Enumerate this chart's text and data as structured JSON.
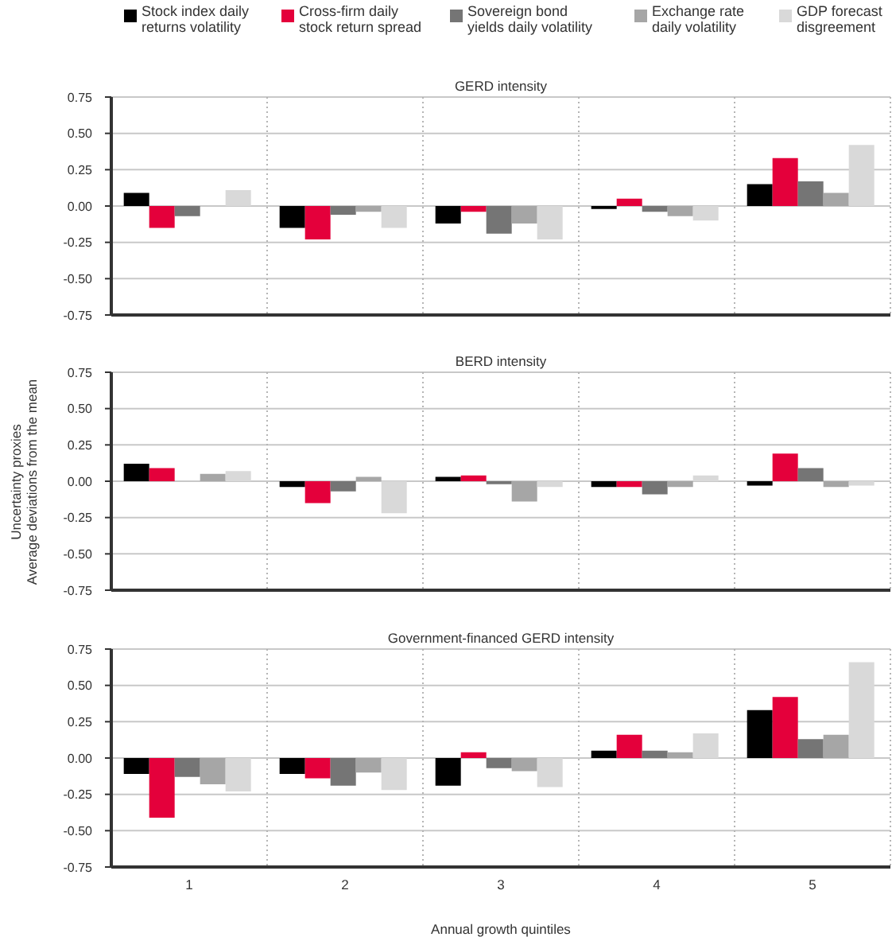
{
  "chart_data": [
    {
      "type": "bar",
      "title": "GERD intensity",
      "categories": [
        "1",
        "2",
        "3",
        "4",
        "5"
      ],
      "legend": "top",
      "grid": true,
      "tick_labels": "y",
      "ylim": [
        -0.75,
        0.75
      ],
      "yticks": [
        -0.75,
        {
          "value": -0.5,
          "label": "-0.50"
        },
        -0.25,
        {
          "value": 0,
          "label": "0.00"
        },
        0.25,
        {
          "value": 0.5,
          "label": "0.50"
        },
        0.75
      ],
      "series": [
        {
          "name": "Stock index daily returns volatility",
          "color": "#000000",
          "values": [
            0.09,
            -0.15,
            -0.12,
            -0.02,
            0.15
          ]
        },
        {
          "name": "Cross-firm daily stock return spread",
          "color": "#e4003b",
          "values": [
            -0.15,
            -0.23,
            -0.04,
            0.05,
            0.33
          ]
        },
        {
          "name": "Sovereign bond yields daily volatility",
          "color": "#757575",
          "values": [
            -0.07,
            -0.06,
            -0.19,
            -0.04,
            0.17
          ]
        },
        {
          "name": "Exchange rate daily volatility",
          "color": "#a6a6a6",
          "values": [
            0,
            -0.04,
            -0.12,
            -0.07,
            0.09
          ]
        },
        {
          "name": "GDP forecast disgreement",
          "color": "#d9d9d9",
          "values": [
            0.11,
            -0.15,
            -0.23,
            -0.1,
            0.42
          ]
        }
      ]
    },
    {
      "type": "bar",
      "title": "BERD intensity",
      "categories": [
        "1",
        "2",
        "3",
        "4",
        "5"
      ],
      "grid": true,
      "tick_labels": "y",
      "ylabel": "Uncertainty proxies\nAverage deviations from the mean",
      "ylim": [
        -0.75,
        0.75
      ],
      "yticks": [
        -0.75,
        {
          "value": -0.5,
          "label": "-0.50"
        },
        -0.25,
        {
          "value": 0,
          "label": "0.00"
        },
        0.25,
        {
          "value": 0.5,
          "label": "0.50"
        },
        0.75
      ],
      "series": [
        {
          "color": "#000000",
          "values": [
            0.12,
            -0.04,
            0.03,
            -0.04,
            -0.03
          ]
        },
        {
          "color": "#e4003b",
          "values": [
            0.09,
            -0.15,
            0.04,
            -0.04,
            0.19
          ]
        },
        {
          "color": "#757575",
          "values": [
            0,
            -0.07,
            -0.02,
            -0.09,
            0.09
          ]
        },
        {
          "color": "#a6a6a6",
          "values": [
            0.05,
            0.03,
            -0.14,
            -0.04,
            -0.04
          ]
        },
        {
          "color": "#d9d9d9",
          "values": [
            0.07,
            -0.22,
            -0.04,
            0.04,
            -0.03
          ]
        }
      ]
    },
    {
      "type": "bar",
      "title": "Government-financed GERD intensity",
      "categories": [
        "1",
        "2",
        "3",
        "4",
        "5"
      ],
      "grid": true,
      "xlabel": "Annual growth quintiles",
      "ylim": [
        -0.75,
        0.75
      ],
      "yticks": [
        -0.75,
        {
          "value": -0.5,
          "label": "-0.50"
        },
        -0.25,
        {
          "value": 0,
          "label": "0.00"
        },
        0.25,
        {
          "value": 0.5,
          "label": "0.50"
        },
        0.75
      ],
      "series": [
        {
          "color": "#000000",
          "values": [
            -0.11,
            -0.11,
            -0.19,
            0.05,
            0.33
          ]
        },
        {
          "color": "#e4003b",
          "values": [
            -0.41,
            -0.14,
            0.04,
            0.16,
            0.42
          ]
        },
        {
          "color": "#757575",
          "values": [
            -0.13,
            -0.19,
            -0.07,
            0.05,
            0.13
          ]
        },
        {
          "color": "#a6a6a6",
          "values": [
            -0.18,
            -0.1,
            -0.09,
            0.04,
            0.16
          ]
        },
        {
          "color": "#d9d9d9",
          "values": [
            -0.23,
            -0.22,
            -0.2,
            0.17,
            0.66
          ]
        }
      ]
    }
  ]
}
